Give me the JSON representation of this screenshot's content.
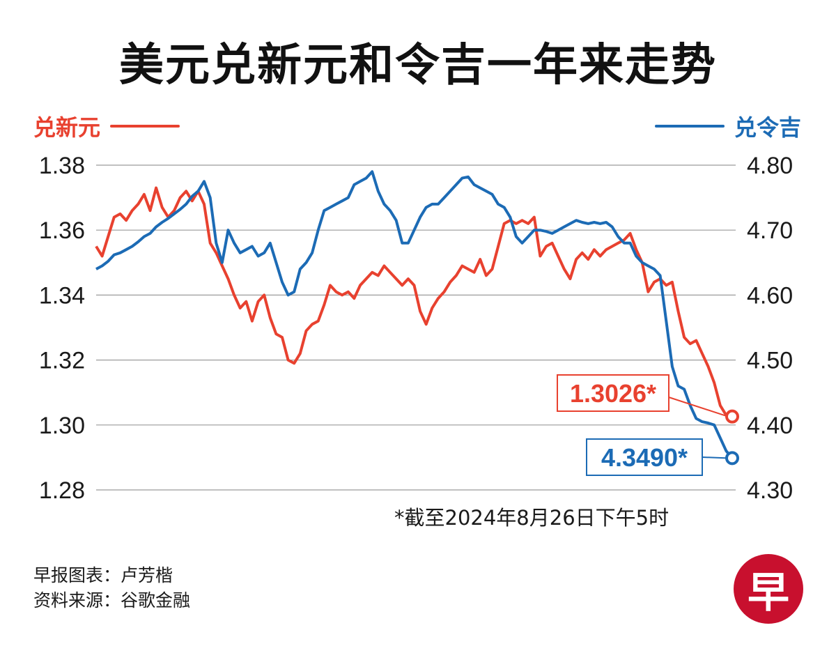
{
  "title": "美元兑新元和令吉一年来走势",
  "legend": {
    "sgd": "兑新元",
    "myr": "兑令吉"
  },
  "note": "*截至2024年8月26日下午5时",
  "credits": {
    "chart_by": "早报图表：卢芳楷",
    "source": "资料来源：谷歌金融"
  },
  "logo": "早",
  "colors": {
    "sgd": "#e8412f",
    "myr": "#1c6bb5",
    "grid": "#9a9a9a"
  },
  "chart_data": {
    "type": "line",
    "title": "美元兑新元和令吉一年来走势",
    "x_range": [
      "2023-08-28",
      "2024-08-26"
    ],
    "y_left": {
      "ylim": [
        1.28,
        1.38
      ],
      "ticks": [
        "1.38",
        "1.36",
        "1.34",
        "1.32",
        "1.30",
        "1.28"
      ]
    },
    "y_right": {
      "ylim": [
        4.3,
        4.8
      ],
      "ticks": [
        "4.80",
        "4.70",
        "4.60",
        "4.50",
        "4.40",
        "4.30"
      ]
    },
    "grid": true,
    "legend_placement": "top",
    "series": [
      {
        "name": "兑新元",
        "axis": "left",
        "color": "#e8412f",
        "values": [
          1.355,
          1.352,
          1.358,
          1.364,
          1.365,
          1.363,
          1.366,
          1.368,
          1.371,
          1.366,
          1.373,
          1.367,
          1.364,
          1.366,
          1.37,
          1.372,
          1.369,
          1.372,
          1.368,
          1.356,
          1.353,
          1.349,
          1.345,
          1.34,
          1.336,
          1.338,
          1.332,
          1.338,
          1.34,
          1.333,
          1.328,
          1.327,
          1.32,
          1.319,
          1.322,
          1.329,
          1.331,
          1.332,
          1.337,
          1.343,
          1.341,
          1.34,
          1.341,
          1.339,
          1.343,
          1.345,
          1.347,
          1.346,
          1.349,
          1.347,
          1.345,
          1.343,
          1.345,
          1.343,
          1.335,
          1.331,
          1.336,
          1.339,
          1.341,
          1.344,
          1.346,
          1.349,
          1.348,
          1.347,
          1.351,
          1.346,
          1.348,
          1.355,
          1.362,
          1.363,
          1.362,
          1.363,
          1.362,
          1.364,
          1.352,
          1.355,
          1.356,
          1.352,
          1.348,
          1.345,
          1.351,
          1.353,
          1.351,
          1.354,
          1.352,
          1.354,
          1.355,
          1.356,
          1.357,
          1.359,
          1.354,
          1.35,
          1.341,
          1.344,
          1.345,
          1.343,
          1.344,
          1.335,
          1.327,
          1.325,
          1.326,
          1.322,
          1.318,
          1.313,
          1.306,
          1.303,
          1.3026
        ]
      },
      {
        "name": "兑令吉",
        "axis": "right",
        "color": "#1c6bb5",
        "values": [
          4.64,
          4.645,
          4.652,
          4.662,
          4.665,
          4.67,
          4.675,
          4.682,
          4.69,
          4.695,
          4.705,
          4.712,
          4.718,
          4.725,
          4.732,
          4.74,
          4.752,
          4.76,
          4.775,
          4.75,
          4.68,
          4.65,
          4.7,
          4.68,
          4.665,
          4.67,
          4.675,
          4.66,
          4.665,
          4.68,
          4.65,
          4.62,
          4.6,
          4.605,
          4.64,
          4.65,
          4.665,
          4.7,
          4.73,
          4.735,
          4.74,
          4.745,
          4.75,
          4.77,
          4.775,
          4.78,
          4.79,
          4.76,
          4.74,
          4.73,
          4.715,
          4.68,
          4.68,
          4.7,
          4.72,
          4.735,
          4.74,
          4.74,
          4.75,
          4.76,
          4.77,
          4.78,
          4.782,
          4.77,
          4.765,
          4.76,
          4.755,
          4.74,
          4.735,
          4.72,
          4.69,
          4.68,
          4.69,
          4.7,
          4.7,
          4.698,
          4.695,
          4.7,
          4.705,
          4.71,
          4.715,
          4.712,
          4.71,
          4.712,
          4.71,
          4.712,
          4.705,
          4.69,
          4.68,
          4.68,
          4.66,
          4.65,
          4.645,
          4.64,
          4.63,
          4.56,
          4.49,
          4.46,
          4.455,
          4.43,
          4.41,
          4.405,
          4.403,
          4.4,
          4.38,
          4.36,
          4.349
        ]
      }
    ],
    "annotations": [
      {
        "series": "兑新元",
        "label": "1.3026*",
        "value": 1.3026
      },
      {
        "series": "兑令吉",
        "label": "4.3490*",
        "value": 4.349
      }
    ]
  }
}
